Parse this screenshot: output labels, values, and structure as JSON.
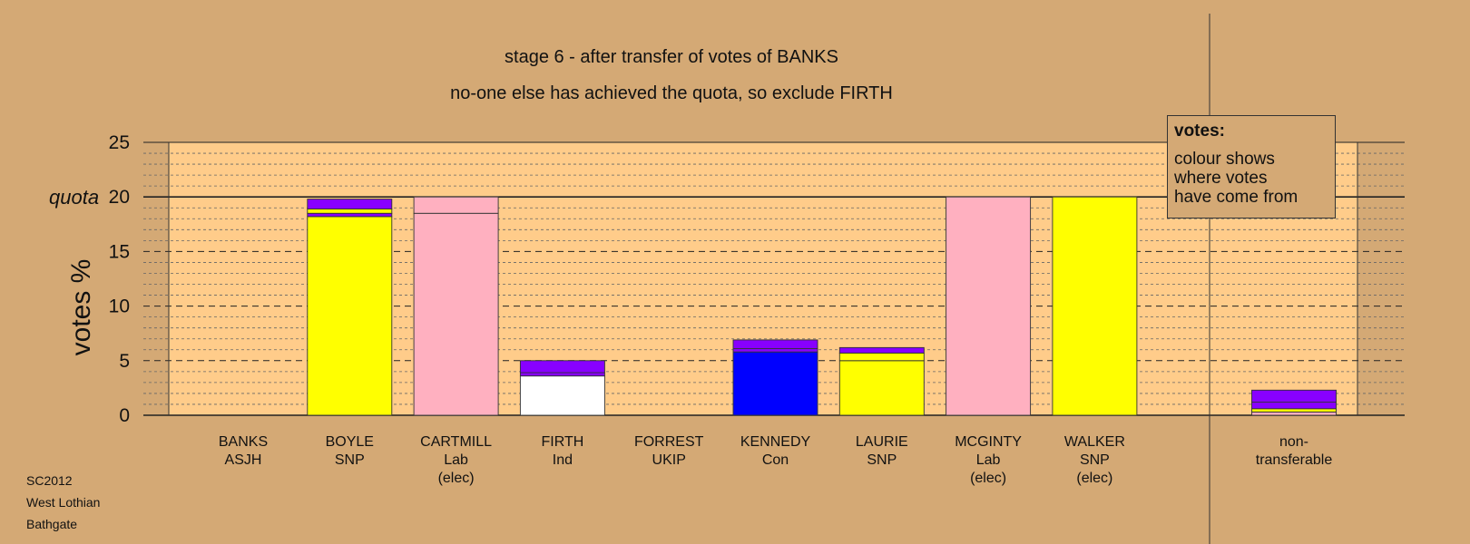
{
  "chart_data": {
    "type": "bar",
    "title": "stage 6 - after transfer of votes of BANKS",
    "subtitle": "no-one else has achieved the quota, so exclude FIRTH",
    "ylabel": "votes %",
    "ylim": [
      0,
      25
    ],
    "yticks": [
      0,
      5,
      10,
      15,
      20,
      25
    ],
    "quota": 20,
    "quota_label": "quota",
    "grid": true,
    "colors": {
      "SNP": "#ffff00",
      "Lab": "#ffb0c0",
      "Ind": "#ffffff",
      "Con": "#0000ff",
      "ASJH": "#8800ff",
      "UKIP": "#8800ff",
      "transfer": "#8800ff",
      "separator": "#444444"
    },
    "categories": [
      {
        "name": "BANKS",
        "party": "ASJH",
        "note": ""
      },
      {
        "name": "BOYLE",
        "party": "SNP",
        "note": ""
      },
      {
        "name": "CARTMILL",
        "party": "Lab",
        "note": "(elec)"
      },
      {
        "name": "FIRTH",
        "party": "Ind",
        "note": ""
      },
      {
        "name": "FORREST",
        "party": "UKIP",
        "note": ""
      },
      {
        "name": "KENNEDY",
        "party": "Con",
        "note": ""
      },
      {
        "name": "LAURIE",
        "party": "SNP",
        "note": ""
      },
      {
        "name": "MCGINTY",
        "party": "Lab",
        "note": "(elec)"
      },
      {
        "name": "WALKER",
        "party": "SNP",
        "note": "(elec)"
      }
    ],
    "series": [
      {
        "candidate": "BANKS",
        "segments": []
      },
      {
        "candidate": "BOYLE",
        "segments": [
          {
            "from": "SNP",
            "value": 18.2
          },
          {
            "from": "transfer",
            "value": 0.3
          },
          {
            "from": "SNP",
            "value": 0.4
          },
          {
            "from": "transfer",
            "value": 0.9
          }
        ]
      },
      {
        "candidate": "CARTMILL",
        "segments": [
          {
            "from": "Lab",
            "value": 18.5
          },
          {
            "from": "Lab",
            "value": 1.5
          }
        ]
      },
      {
        "candidate": "FIRTH",
        "segments": [
          {
            "from": "Ind",
            "value": 3.6
          },
          {
            "from": "transfer",
            "value": 0.3
          },
          {
            "from": "transfer",
            "value": 1.1
          }
        ]
      },
      {
        "candidate": "FORREST",
        "segments": []
      },
      {
        "candidate": "KENNEDY",
        "segments": [
          {
            "from": "Con",
            "value": 5.8
          },
          {
            "from": "transfer",
            "value": 0.3
          },
          {
            "from": "transfer",
            "value": 0.8
          }
        ]
      },
      {
        "candidate": "LAURIE",
        "segments": [
          {
            "from": "SNP",
            "value": 5.0
          },
          {
            "from": "SNP",
            "value": 0.7
          },
          {
            "from": "transfer",
            "value": 0.5
          }
        ]
      },
      {
        "candidate": "MCGINTY",
        "segments": [
          {
            "from": "Lab",
            "value": 20.0
          }
        ]
      },
      {
        "candidate": "WALKER",
        "segments": [
          {
            "from": "SNP",
            "value": 20.0
          }
        ]
      }
    ],
    "nontransferable": {
      "label_line1": "non-",
      "label_line2": "transferable",
      "segments": [
        {
          "from": "Lab",
          "value": 0.3
        },
        {
          "from": "SNP",
          "value": 0.3
        },
        {
          "from": "transfer",
          "value": 0.6
        },
        {
          "from": "transfer",
          "value": 1.1
        }
      ]
    }
  },
  "legend": {
    "heading": "votes:",
    "line1": "colour shows",
    "line2": "where votes",
    "line3": "have come from"
  },
  "footer": {
    "line1": "SC2012",
    "line2": "West Lothian",
    "line3": "Bathgate"
  }
}
